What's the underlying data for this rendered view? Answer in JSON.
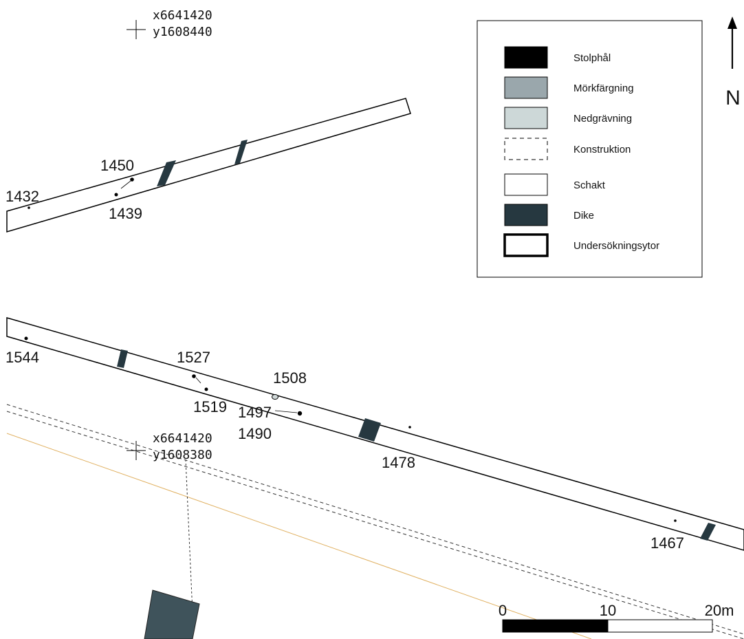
{
  "coordinates": [
    {
      "x": "x6641420",
      "y": "y1608440"
    },
    {
      "x": "x6641420",
      "y": "y1608380"
    }
  ],
  "feature_labels": {
    "f1432": "1432",
    "f1450": "1450",
    "f1439": "1439",
    "f1544": "1544",
    "f1527": "1527",
    "f1519": "1519",
    "f1508": "1508",
    "f1497": "1497",
    "f1490": "1490",
    "f1478": "1478",
    "f1467": "1467"
  },
  "legend": {
    "items": [
      {
        "label": "Stolphål",
        "symbol": "filled",
        "color": "#000000"
      },
      {
        "label": "Mörkfärgning",
        "symbol": "filled",
        "color": "#9aa7ac"
      },
      {
        "label": "Nedgrävning",
        "symbol": "filled",
        "color": "#cdd8d8"
      },
      {
        "label": "Konstruktion",
        "symbol": "dashed-outline",
        "color": "#000000"
      },
      {
        "label": "Schakt",
        "symbol": "outline",
        "color": "#000000"
      },
      {
        "label": "Dike",
        "symbol": "filled",
        "color": "#263840"
      },
      {
        "label": "Undersökningsytor",
        "symbol": "thick-outline",
        "color": "#000000"
      }
    ]
  },
  "north": "N",
  "scale_bar": {
    "labels": [
      "0",
      "10",
      "20m"
    ]
  },
  "colors": {
    "dike": "#263840",
    "building": "#3f535b",
    "line_orange": "#e0b060"
  }
}
